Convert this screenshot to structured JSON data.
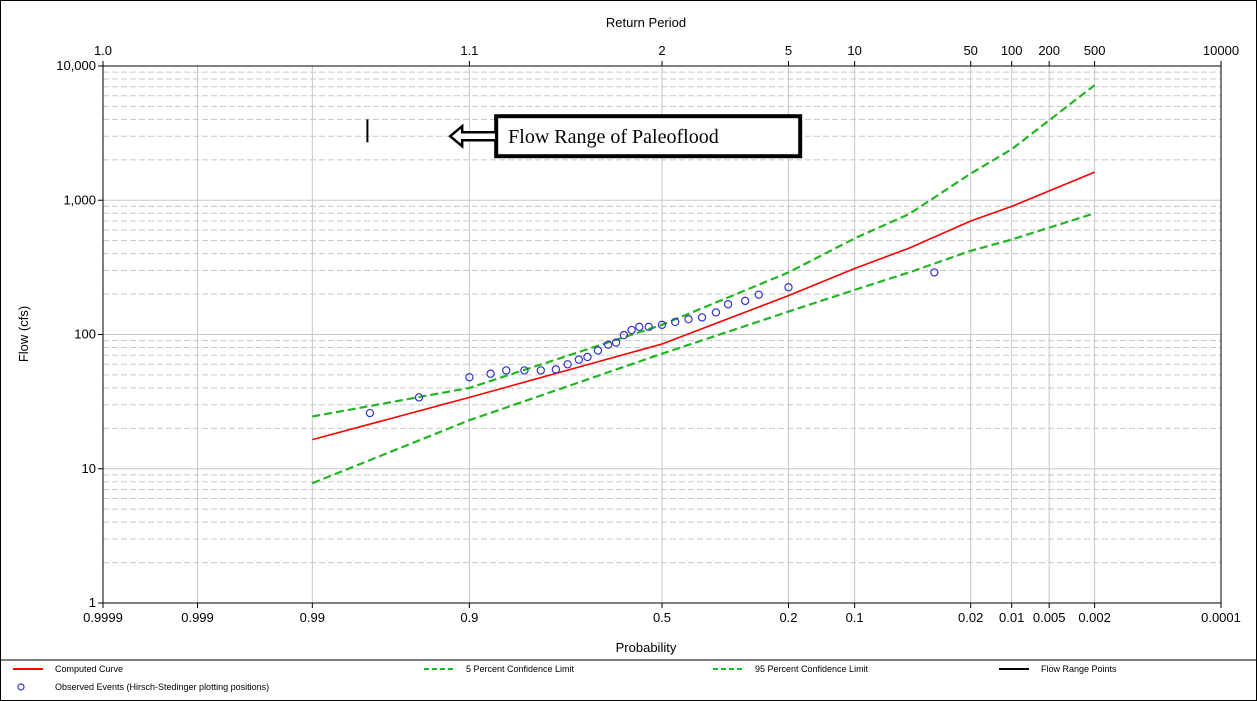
{
  "chart_data": {
    "type": "line",
    "title": "",
    "top_axis_label": "Return Period",
    "xlabel": "Probability",
    "ylabel": "Flow (cfs)",
    "x_scale": "normal-probability",
    "y_scale": "log",
    "xlim": [
      0.9999,
      0.0001
    ],
    "ylim": [
      1,
      10000
    ],
    "x_ticks": [
      {
        "p": 0.9999,
        "label": "0.9999"
      },
      {
        "p": 0.999,
        "label": "0.999"
      },
      {
        "p": 0.99,
        "label": "0.99"
      },
      {
        "p": 0.9,
        "label": "0.9"
      },
      {
        "p": 0.5,
        "label": "0.5"
      },
      {
        "p": 0.2,
        "label": "0.2"
      },
      {
        "p": 0.1,
        "label": "0.1"
      },
      {
        "p": 0.02,
        "label": "0.02"
      },
      {
        "p": 0.01,
        "label": "0.01"
      },
      {
        "p": 0.005,
        "label": "0.005"
      },
      {
        "p": 0.002,
        "label": "0.002"
      },
      {
        "p": 0.0001,
        "label": "0.0001"
      }
    ],
    "top_ticks": [
      {
        "p": 0.9999,
        "label": "1.0"
      },
      {
        "p": 0.9,
        "label": "1.1"
      },
      {
        "p": 0.5,
        "label": "2"
      },
      {
        "p": 0.2,
        "label": "5"
      },
      {
        "p": 0.1,
        "label": "10"
      },
      {
        "p": 0.02,
        "label": "50"
      },
      {
        "p": 0.01,
        "label": "100"
      },
      {
        "p": 0.005,
        "label": "200"
      },
      {
        "p": 0.002,
        "label": "500"
      },
      {
        "p": 0.0001,
        "label": "10000"
      }
    ],
    "y_ticks": [
      {
        "v": 1,
        "label": "1"
      },
      {
        "v": 10,
        "label": "10"
      },
      {
        "v": 100,
        "label": "100"
      },
      {
        "v": 1000,
        "label": "1,000"
      },
      {
        "v": 10000,
        "label": "10,000"
      }
    ],
    "grid": true,
    "legend_position": "bottom",
    "series": [
      {
        "name": "Computed Curve",
        "color": "#ff0000",
        "style": "solid",
        "points": [
          [
            0.99,
            16.5
          ],
          [
            0.9,
            34
          ],
          [
            0.5,
            85
          ],
          [
            0.2,
            195
          ],
          [
            0.1,
            310
          ],
          [
            0.05,
            440
          ],
          [
            0.02,
            700
          ],
          [
            0.01,
            900
          ],
          [
            0.002,
            1620
          ]
        ]
      },
      {
        "name": "5 Percent Confidence Limit",
        "color": "#22b522",
        "style": "dashed",
        "points": [
          [
            0.99,
            24.5
          ],
          [
            0.9,
            40
          ],
          [
            0.5,
            118
          ],
          [
            0.2,
            290
          ],
          [
            0.1,
            520
          ],
          [
            0.05,
            790
          ],
          [
            0.02,
            1580
          ],
          [
            0.01,
            2400
          ],
          [
            0.002,
            7200
          ]
        ]
      },
      {
        "name": "95 Percent Confidence Limit",
        "color": "#22b522",
        "style": "dashed",
        "points": [
          [
            0.99,
            7.8
          ],
          [
            0.9,
            23
          ],
          [
            0.5,
            72
          ],
          [
            0.2,
            148
          ],
          [
            0.1,
            215
          ],
          [
            0.05,
            290
          ],
          [
            0.02,
            420
          ],
          [
            0.01,
            510
          ],
          [
            0.002,
            800
          ]
        ]
      },
      {
        "name": "Flow Range Points",
        "color": "#000000",
        "style": "solid",
        "points": [
          [
            0.975,
            2700
          ],
          [
            0.975,
            4000
          ]
        ]
      },
      {
        "name": "Observed Events (Hirsch-Stedinger plotting positions)",
        "color": "#3333cc",
        "style": "marker",
        "points": [
          [
            0.974,
            26
          ],
          [
            0.947,
            34
          ],
          [
            0.9,
            48
          ],
          [
            0.873,
            51
          ],
          [
            0.85,
            54
          ],
          [
            0.82,
            54
          ],
          [
            0.79,
            54
          ],
          [
            0.76,
            55
          ],
          [
            0.735,
            60
          ],
          [
            0.71,
            65
          ],
          [
            0.69,
            68
          ],
          [
            0.665,
            76
          ],
          [
            0.64,
            84
          ],
          [
            0.62,
            87
          ],
          [
            0.6,
            99
          ],
          [
            0.58,
            108
          ],
          [
            0.56,
            114
          ],
          [
            0.535,
            114
          ],
          [
            0.5,
            118
          ],
          [
            0.465,
            124
          ],
          [
            0.43,
            130
          ],
          [
            0.395,
            134
          ],
          [
            0.36,
            146
          ],
          [
            0.33,
            168
          ],
          [
            0.29,
            178
          ],
          [
            0.26,
            198
          ],
          [
            0.2,
            225
          ],
          [
            0.035,
            290
          ]
        ]
      }
    ],
    "annotation": {
      "text": "Flow Range of Paleoflood",
      "p": 0.93,
      "v": 3000
    }
  }
}
